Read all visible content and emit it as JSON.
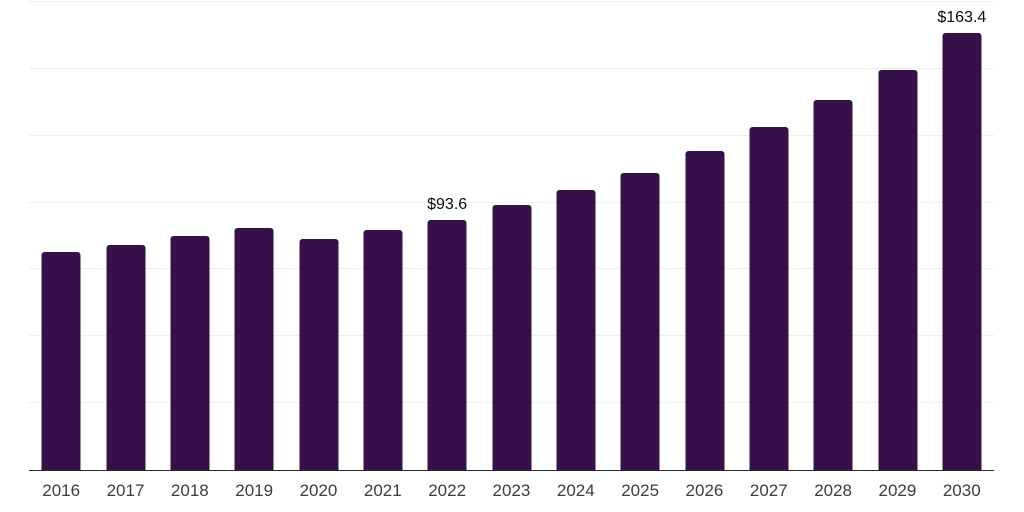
{
  "chart_data": {
    "type": "bar",
    "categories": [
      "2016",
      "2017",
      "2018",
      "2019",
      "2020",
      "2021",
      "2022",
      "2023",
      "2024",
      "2025",
      "2026",
      "2027",
      "2028",
      "2029",
      "2030"
    ],
    "values": [
      81.7,
      84.0,
      87.4,
      90.6,
      86.4,
      89.7,
      93.6,
      99.0,
      104.6,
      111.1,
      119.2,
      128.1,
      138.2,
      149.7,
      163.4
    ],
    "value_labels": [
      null,
      null,
      null,
      null,
      null,
      null,
      "$93.6",
      null,
      null,
      null,
      null,
      null,
      null,
      null,
      "$163.4"
    ],
    "title": "",
    "xlabel": "",
    "ylabel": "",
    "ylim": [
      0,
      175
    ],
    "gridline_step": 25,
    "grid_on": true,
    "legend": "none",
    "colors": {
      "bar": "#361149",
      "grid": "#efefef",
      "axis": "#2b2b2b",
      "x_label": "#3d3d3d",
      "value_label": "#0b0b0b",
      "background": "#ffffff"
    }
  }
}
